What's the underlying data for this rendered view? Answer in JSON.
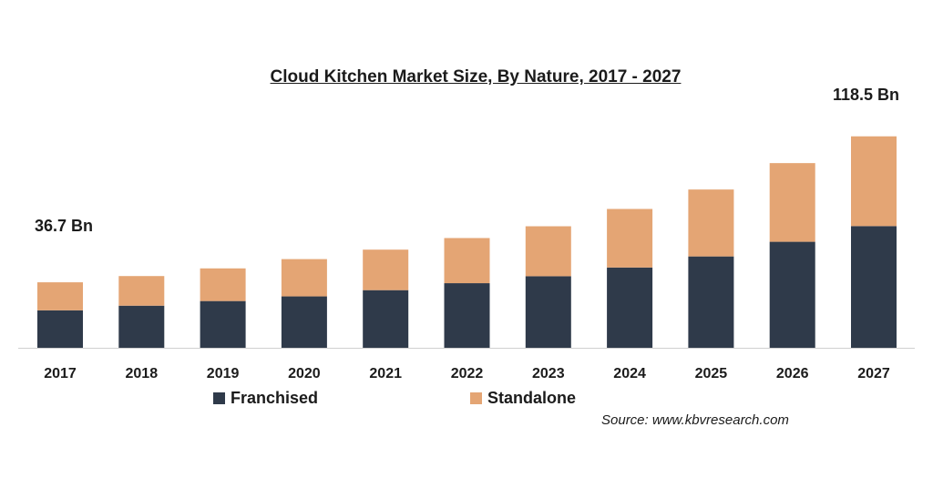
{
  "chart_data": {
    "type": "bar",
    "stacked": true,
    "title": "Cloud Kitchen Market Size, By Nature, 2017 - 2027",
    "categories": [
      "2017",
      "2018",
      "2019",
      "2020",
      "2021",
      "2022",
      "2023",
      "2024",
      "2025",
      "2026",
      "2027"
    ],
    "series": [
      {
        "name": "Franchised",
        "color": "#2f3a4a",
        "values": [
          21.0,
          23.6,
          26.2,
          28.8,
          32.3,
          36.2,
          40.1,
          45.0,
          51.2,
          59.4,
          68.2
        ]
      },
      {
        "name": "Standalone",
        "color": "#e4a574",
        "values": [
          15.7,
          16.6,
          18.3,
          20.9,
          22.7,
          25.3,
          28.0,
          32.8,
          37.5,
          44.1,
          50.3
        ]
      }
    ],
    "annotations": [
      "36.7 Bn",
      "118.5 Bn"
    ],
    "ylim": [
      0,
      130
    ],
    "grid": false,
    "legend_placement": "bottom",
    "source": "Source: www.kbvresearch.com"
  }
}
